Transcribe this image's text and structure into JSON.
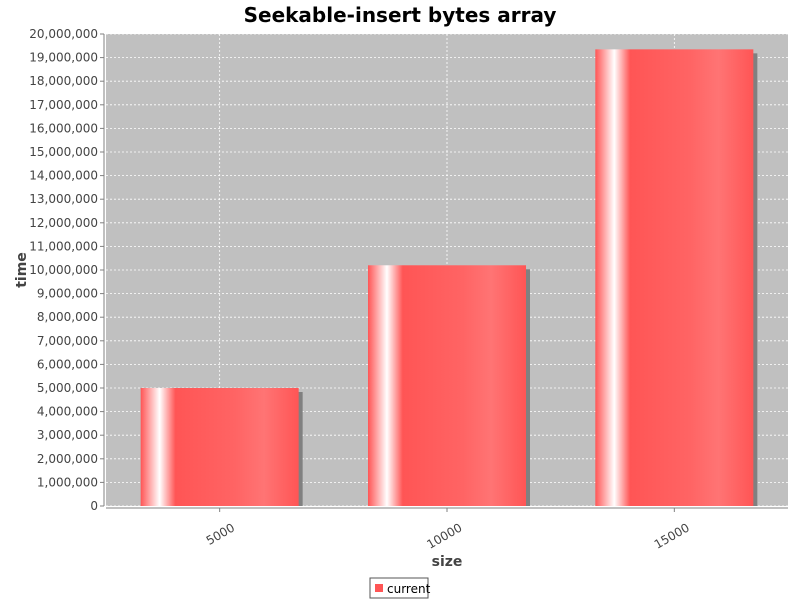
{
  "chart_data": {
    "type": "bar",
    "title": "Seekable-insert bytes array",
    "xlabel": "size",
    "ylabel": "time",
    "categories": [
      "5000",
      "10000",
      "15000"
    ],
    "series": [
      {
        "name": "current",
        "values": [
          5000000,
          10200000,
          19350000
        ],
        "color": "#ff5555"
      }
    ],
    "ylim": [
      0,
      20000000
    ],
    "yticks": [
      0,
      1000000,
      2000000,
      3000000,
      4000000,
      5000000,
      6000000,
      7000000,
      8000000,
      9000000,
      10000000,
      11000000,
      12000000,
      13000000,
      14000000,
      15000000,
      16000000,
      17000000,
      18000000,
      19000000,
      20000000
    ],
    "ytick_labels": [
      "0",
      "1,000,000",
      "2,000,000",
      "3,000,000",
      "4,000,000",
      "5,000,000",
      "6,000,000",
      "7,000,000",
      "8,000,000",
      "9,000,000",
      "10,000,000",
      "11,000,000",
      "12,000,000",
      "13,000,000",
      "14,000,000",
      "15,000,000",
      "16,000,000",
      "17,000,000",
      "18,000,000",
      "19,000,000",
      "20,000,000"
    ],
    "grid": true,
    "legend_position": "bottom-center",
    "plot_background": "#c0c0c0",
    "grid_color": "#ffffff"
  }
}
